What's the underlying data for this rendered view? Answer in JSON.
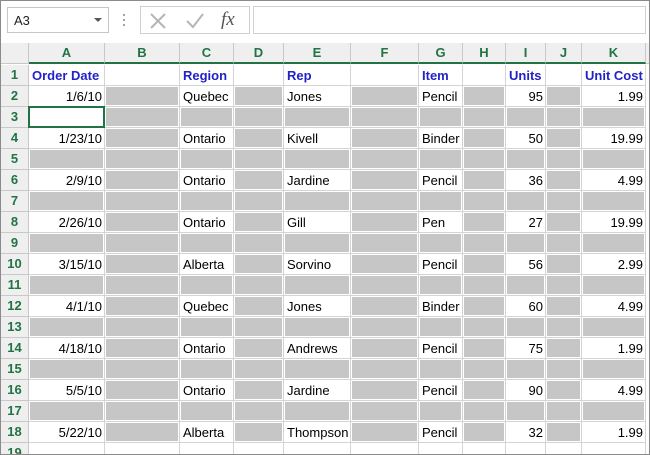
{
  "name_box": "A3",
  "function_icon": "fx",
  "columns": [
    "A",
    "B",
    "C",
    "D",
    "E",
    "F",
    "G",
    "H",
    "I",
    "J",
    "K"
  ],
  "row_numbers": [
    1,
    2,
    3,
    4,
    5,
    6,
    7,
    8,
    9,
    10,
    11,
    12,
    13,
    14,
    15,
    16,
    17,
    18,
    19
  ],
  "table": {
    "header": [
      "Order Date",
      "Region",
      "Rep",
      "Item",
      "Units",
      "Unit Cost"
    ],
    "rows": [
      [
        "1/6/10",
        "Quebec",
        "Jones",
        "Pencil",
        "95",
        "1.99"
      ],
      [
        "1/23/10",
        "Ontario",
        "Kivell",
        "Binder",
        "50",
        "19.99"
      ],
      [
        "2/9/10",
        "Ontario",
        "Jardine",
        "Pencil",
        "36",
        "4.99"
      ],
      [
        "2/26/10",
        "Ontario",
        "Gill",
        "Pen",
        "27",
        "19.99"
      ],
      [
        "3/15/10",
        "Alberta",
        "Sorvino",
        "Pencil",
        "56",
        "2.99"
      ],
      [
        "4/1/10",
        "Quebec",
        "Jones",
        "Binder",
        "60",
        "4.99"
      ],
      [
        "4/18/10",
        "Ontario",
        "Andrews",
        "Pencil",
        "75",
        "1.99"
      ],
      [
        "5/5/10",
        "Ontario",
        "Jardine",
        "Pencil",
        "90",
        "4.99"
      ],
      [
        "5/22/10",
        "Alberta",
        "Thompson",
        "Pencil",
        "32",
        "1.99"
      ]
    ]
  }
}
